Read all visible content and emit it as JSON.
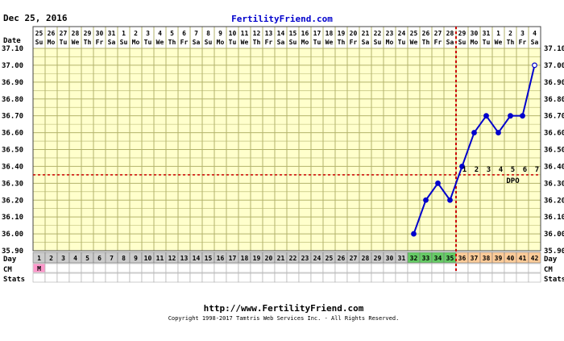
{
  "header": {
    "date": "Dec 25, 2016",
    "site": "FertilityFriend.com"
  },
  "footer": {
    "url": "http://www.FertilityFriend.com",
    "copyright": "Copyright 1998-2017 Tamtris Web Services Inc. - All Rights Reserved."
  },
  "labels": {
    "date_row": "Date",
    "day_row": "Day",
    "cm_row": "CM",
    "stats_row": "Stats",
    "dpo": "DPO"
  },
  "colors": {
    "plot_bg": "#ffffcc",
    "grid": "#b3b36b",
    "line": "#0000cc",
    "coverline": "#cc0000",
    "site_link": "#0000cc",
    "cell_gray": "#cccccc",
    "cell_pink": "#ff99cc",
    "cell_green": "#66cc66",
    "cell_orange": "#ffcc99"
  },
  "chart_data": {
    "type": "line",
    "dates": [
      "25",
      "26",
      "27",
      "28",
      "29",
      "30",
      "31",
      "1",
      "2",
      "3",
      "4",
      "5",
      "6",
      "7",
      "8",
      "9",
      "10",
      "11",
      "12",
      "13",
      "14",
      "15",
      "16",
      "17",
      "18",
      "19",
      "20",
      "21",
      "22",
      "23",
      "24",
      "25",
      "26",
      "27",
      "28",
      "29",
      "30",
      "31",
      "1",
      "2",
      "3",
      "4"
    ],
    "weekdays": [
      "Su",
      "Mo",
      "Tu",
      "We",
      "Th",
      "Fr",
      "Sa",
      "Su",
      "Mo",
      "Tu",
      "We",
      "Th",
      "Fr",
      "Sa",
      "Su",
      "Mo",
      "Tu",
      "We",
      "Th",
      "Fr",
      "Sa",
      "Su",
      "Mo",
      "Tu",
      "We",
      "Th",
      "Fr",
      "Sa",
      "Su",
      "Mo",
      "Tu",
      "We",
      "Th",
      "Fr",
      "Sa",
      "Su",
      "Mo",
      "Tu",
      "We",
      "Th",
      "Fr",
      "Sa"
    ],
    "cycle_days": [
      1,
      2,
      3,
      4,
      5,
      6,
      7,
      8,
      9,
      10,
      11,
      12,
      13,
      14,
      15,
      16,
      17,
      18,
      19,
      20,
      21,
      22,
      23,
      24,
      25,
      26,
      27,
      28,
      29,
      30,
      31,
      32,
      33,
      34,
      35,
      36,
      37,
      38,
      39,
      40,
      41,
      42
    ],
    "day_cell_colors": [
      "gray",
      "gray",
      "gray",
      "gray",
      "gray",
      "gray",
      "gray",
      "gray",
      "gray",
      "gray",
      "gray",
      "gray",
      "gray",
      "gray",
      "gray",
      "gray",
      "gray",
      "gray",
      "gray",
      "gray",
      "gray",
      "gray",
      "gray",
      "gray",
      "gray",
      "gray",
      "gray",
      "gray",
      "gray",
      "gray",
      "gray",
      "green",
      "green",
      "green",
      "green",
      "orange",
      "orange",
      "orange",
      "orange",
      "orange",
      "orange",
      "orange"
    ],
    "cm": [
      {
        "day": 1,
        "label": "M",
        "color": "pink"
      }
    ],
    "temperatures": [
      {
        "day": 32,
        "temp": 36.0
      },
      {
        "day": 33,
        "temp": 36.2
      },
      {
        "day": 34,
        "temp": 36.3
      },
      {
        "day": 35,
        "temp": 36.2
      },
      {
        "day": 36,
        "temp": 36.4
      },
      {
        "day": 37,
        "temp": 36.6
      },
      {
        "day": 38,
        "temp": 36.7
      },
      {
        "day": 39,
        "temp": 36.6
      },
      {
        "day": 40,
        "temp": 36.7
      },
      {
        "day": 41,
        "temp": 36.7
      },
      {
        "day": 42,
        "temp": 37.0
      }
    ],
    "last_point_open": true,
    "coverline": 36.35,
    "ovulation_day": 35,
    "dpo": [
      {
        "day": 36,
        "label": "1"
      },
      {
        "day": 37,
        "label": "2"
      },
      {
        "day": 38,
        "label": "3"
      },
      {
        "day": 39,
        "label": "4"
      },
      {
        "day": 40,
        "label": "5"
      },
      {
        "day": 41,
        "label": "6"
      },
      {
        "day": 42,
        "label": "7"
      }
    ],
    "y_ticks": [
      "35.90",
      "36.00",
      "36.10",
      "36.20",
      "36.30",
      "36.40",
      "36.50",
      "36.60",
      "36.70",
      "36.80",
      "36.90",
      "37.00",
      "37.10"
    ],
    "ylim": [
      35.9,
      37.1
    ],
    "grid": true
  }
}
